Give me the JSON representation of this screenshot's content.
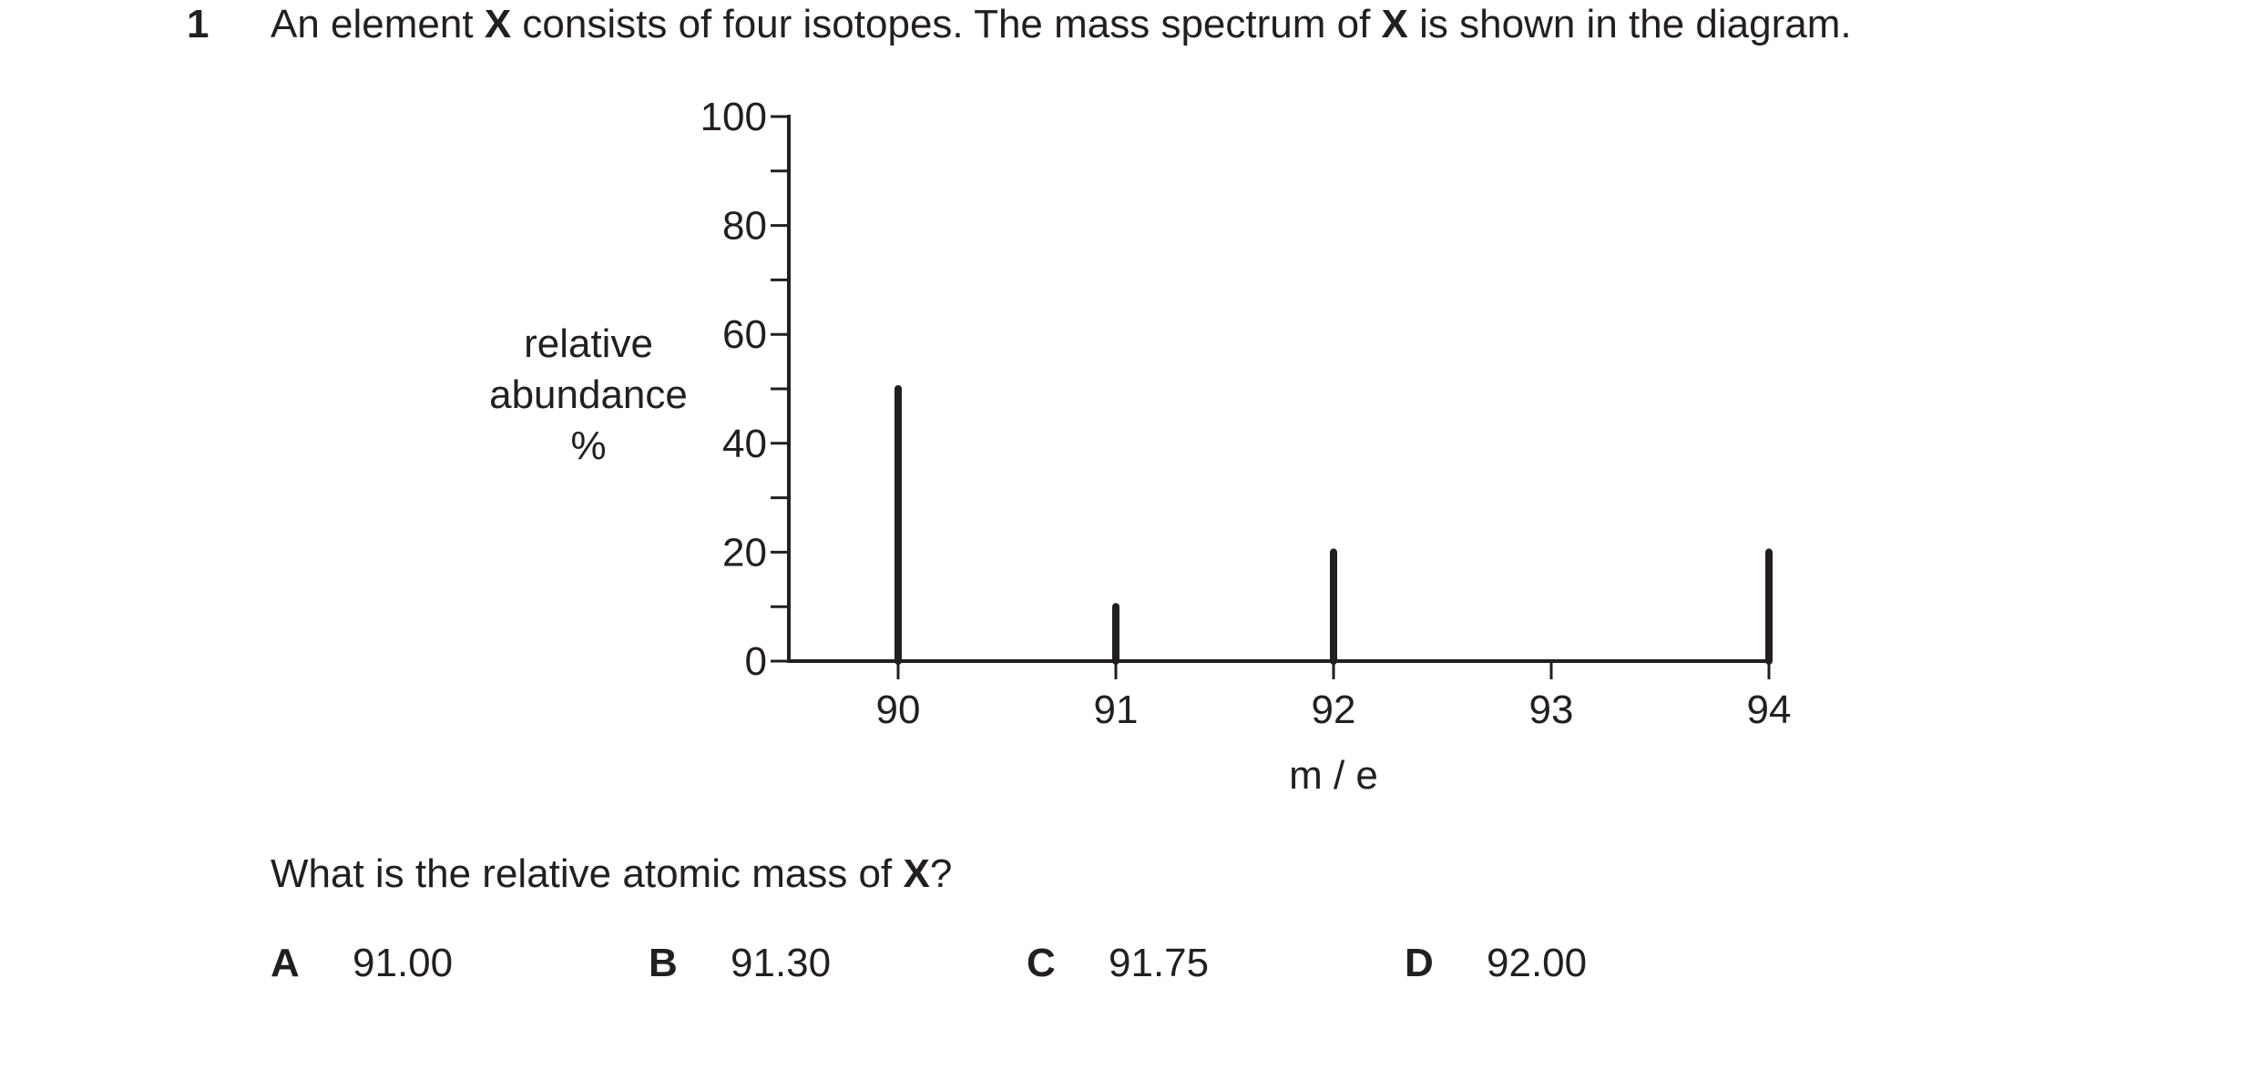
{
  "question": {
    "number": "1",
    "stem_part1": "An element ",
    "symbol": "X",
    "stem_part2": " consists of four isotopes. The mass spectrum of ",
    "stem_part3": " is shown in the diagram.",
    "ask_part1": "What is the relative atomic mass of ",
    "ask_part2": "?"
  },
  "options": [
    {
      "letter": "A",
      "value": "91.00"
    },
    {
      "letter": "B",
      "value": "91.30"
    },
    {
      "letter": "C",
      "value": "91.75"
    },
    {
      "letter": "D",
      "value": "92.00"
    }
  ],
  "chart_data": {
    "type": "bar",
    "title": "",
    "xlabel": "m / e",
    "ylabel_lines": [
      "relative",
      "abundance",
      "%"
    ],
    "x_ticks": [
      90,
      91,
      92,
      93,
      94
    ],
    "x_tick_labels": [
      "90",
      "91",
      "92",
      "93",
      "94"
    ],
    "xlim": [
      89.5,
      94
    ],
    "y_ticks": [
      0,
      20,
      40,
      60,
      80,
      100
    ],
    "y_tick_labels": [
      "0",
      "20",
      "40",
      "60",
      "80",
      "100"
    ],
    "y_minor_ticks": [
      10,
      30,
      50,
      70,
      90
    ],
    "ylim": [
      0,
      100
    ],
    "grid": false,
    "x": [
      90,
      91,
      92,
      94
    ],
    "values": [
      50,
      10,
      20,
      20
    ],
    "color": "#231f20"
  }
}
